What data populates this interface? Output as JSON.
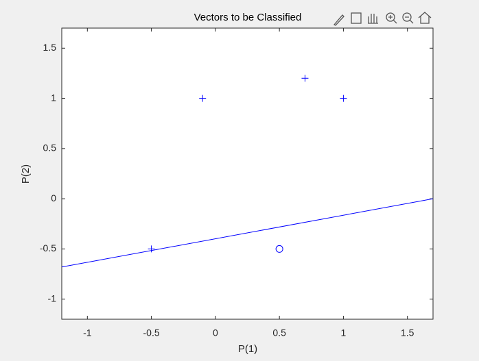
{
  "chart_data": {
    "type": "scatter",
    "title": "Vectors to be Classified",
    "xlabel": "P(1)",
    "ylabel": "P(2)",
    "xlim": [
      -1.2,
      1.7
    ],
    "ylim": [
      -1.2,
      1.7
    ],
    "xticks": [
      -1,
      -0.5,
      0,
      0.5,
      1,
      1.5
    ],
    "yticks": [
      -1,
      -0.5,
      0,
      0.5,
      1,
      1.5
    ],
    "series": [
      {
        "marker": "+",
        "color": "#0000ff",
        "x": [
          -0.5,
          -0.1,
          0.7,
          1
        ],
        "values": [
          -0.5,
          1,
          1.2,
          1
        ]
      },
      {
        "marker": "o",
        "color": "#0000ff",
        "x": [
          0.5
        ],
        "values": [
          -0.5
        ]
      },
      {
        "marker": "line",
        "color": "#0000ff",
        "x": [
          -1.2,
          1.7
        ],
        "values": [
          -0.68,
          0
        ]
      }
    ]
  }
}
